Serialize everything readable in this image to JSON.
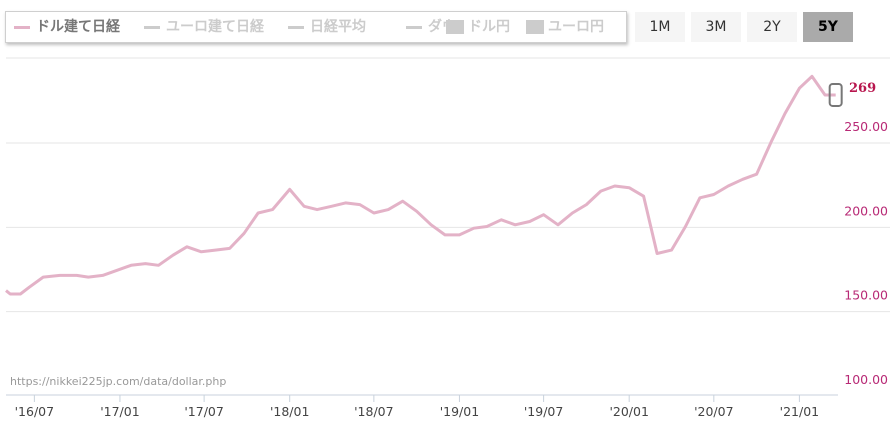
{
  "legend": {
    "items": [
      {
        "label": "ドル建て日経",
        "active": true,
        "marker": "line"
      },
      {
        "label": "ユーロ建て日経",
        "active": false,
        "marker": "line"
      },
      {
        "label": "日経平均",
        "active": false,
        "marker": "line"
      },
      {
        "label": "ダウ",
        "active": false,
        "marker": "line"
      },
      {
        "label": "ドル円",
        "active": false,
        "marker": "square"
      },
      {
        "label": "ユーロ円",
        "active": false,
        "marker": "square"
      }
    ]
  },
  "range_buttons": [
    {
      "label": "1M",
      "selected": false
    },
    {
      "label": "3M",
      "selected": false
    },
    {
      "label": "2Y",
      "selected": false
    },
    {
      "label": "5Y",
      "selected": true
    }
  ],
  "source_text": "https://nikkei225jp.com/data/dollar.php",
  "last_value_label": "269",
  "colors": {
    "series": "#e3b2c7",
    "ytick": "#b82a76",
    "last_value": "#b8164e"
  },
  "chart_data": {
    "type": "line",
    "title": "",
    "xlabel": "",
    "ylabel": "",
    "ylim": [
      100,
      275
    ],
    "yticks": [
      100,
      150,
      200,
      250
    ],
    "ytick_labels": [
      "100.00",
      "150.00",
      "200.00",
      "250.00"
    ],
    "y_axis_position": "right",
    "xlim": [
      "2016-05-01",
      "2021-03-25"
    ],
    "xtick_dates": [
      "2016-07-01",
      "2017-01-01",
      "2017-07-01",
      "2018-01-01",
      "2018-07-01",
      "2019-01-01",
      "2019-07-01",
      "2020-01-01",
      "2020-07-01",
      "2021-01-01"
    ],
    "xtick_labels": [
      "'16/07",
      "'17/01",
      "'17/07",
      "'18/01",
      "'18/07",
      "'19/01",
      "'19/07",
      "'20/01",
      "'20/07",
      "'21/01"
    ],
    "grid": true,
    "series": [
      {
        "name": "ドル建て日経",
        "color": "#e3b2c7",
        "points": [
          [
            "2016-05-01",
            153
          ],
          [
            "2016-05-10",
            151
          ],
          [
            "2016-06-01",
            151
          ],
          [
            "2016-06-20",
            155
          ],
          [
            "2016-07-20",
            161
          ],
          [
            "2016-08-25",
            162
          ],
          [
            "2016-09-30",
            162
          ],
          [
            "2016-10-25",
            161
          ],
          [
            "2016-11-25",
            162
          ],
          [
            "2016-12-25",
            165
          ],
          [
            "2017-01-25",
            168
          ],
          [
            "2017-02-25",
            169
          ],
          [
            "2017-03-25",
            168
          ],
          [
            "2017-04-25",
            174
          ],
          [
            "2017-05-25",
            179
          ],
          [
            "2017-06-25",
            176
          ],
          [
            "2017-07-25",
            177
          ],
          [
            "2017-08-25",
            178
          ],
          [
            "2017-09-25",
            187
          ],
          [
            "2017-10-25",
            199
          ],
          [
            "2017-11-25",
            201
          ],
          [
            "2018-01-01",
            213
          ],
          [
            "2018-02-01",
            203
          ],
          [
            "2018-03-01",
            201
          ],
          [
            "2018-04-01",
            203
          ],
          [
            "2018-05-01",
            205
          ],
          [
            "2018-06-01",
            204
          ],
          [
            "2018-07-01",
            199
          ],
          [
            "2018-08-01",
            201
          ],
          [
            "2018-09-01",
            206
          ],
          [
            "2018-10-01",
            200
          ],
          [
            "2018-11-01",
            192
          ],
          [
            "2018-12-01",
            186
          ],
          [
            "2019-01-01",
            186
          ],
          [
            "2019-02-01",
            190
          ],
          [
            "2019-03-01",
            191
          ],
          [
            "2019-04-01",
            195
          ],
          [
            "2019-05-01",
            192
          ],
          [
            "2019-06-01",
            194
          ],
          [
            "2019-07-01",
            198
          ],
          [
            "2019-08-01",
            192
          ],
          [
            "2019-09-01",
            199
          ],
          [
            "2019-10-01",
            204
          ],
          [
            "2019-11-01",
            212
          ],
          [
            "2019-12-01",
            215
          ],
          [
            "2020-01-01",
            214
          ],
          [
            "2020-02-01",
            209
          ],
          [
            "2020-03-01",
            175
          ],
          [
            "2020-04-01",
            177
          ],
          [
            "2020-05-01",
            191
          ],
          [
            "2020-06-01",
            208
          ],
          [
            "2020-07-01",
            210
          ],
          [
            "2020-08-01",
            215
          ],
          [
            "2020-09-01",
            219
          ],
          [
            "2020-10-01",
            222
          ],
          [
            "2020-11-01",
            241
          ],
          [
            "2020-12-01",
            258
          ],
          [
            "2021-01-01",
            273
          ],
          [
            "2021-01-28",
            280
          ],
          [
            "2021-02-25",
            269
          ],
          [
            "2021-03-20",
            269
          ]
        ]
      }
    ],
    "last_point": {
      "date": "2021-03-20",
      "value": 269
    }
  }
}
